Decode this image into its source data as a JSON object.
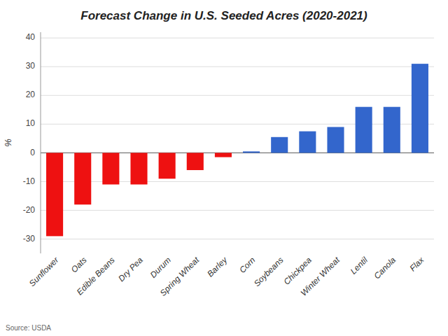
{
  "chart_data": {
    "type": "bar",
    "title": "Forecast Change in U.S. Seeded Acres (2020-2021)",
    "ylabel": "%",
    "source": "Source: USDA",
    "categories": [
      "Sunflower",
      "Oats",
      "Edible Beans",
      "Dry Pea",
      "Durum",
      "Spring Wheat",
      "Barley",
      "Corn",
      "Soybeans",
      "Chickpea",
      "Winter Wheat",
      "Lentil",
      "Canola",
      "Flax"
    ],
    "values": [
      -29,
      -18,
      -11,
      -11,
      -9,
      -6,
      -1.5,
      0.5,
      5.5,
      7.5,
      9,
      16,
      16,
      31
    ],
    "colors": [
      "#ee1111",
      "#ee1111",
      "#ee1111",
      "#ee1111",
      "#ee1111",
      "#ee1111",
      "#ee1111",
      "#3366cc",
      "#3366cc",
      "#3366cc",
      "#3366cc",
      "#3366cc",
      "#3366cc",
      "#3366cc"
    ],
    "ylim": [
      -35,
      42
    ],
    "yticks": [
      -30,
      -20,
      -10,
      0,
      10,
      20,
      30,
      40
    ],
    "grid": true
  }
}
